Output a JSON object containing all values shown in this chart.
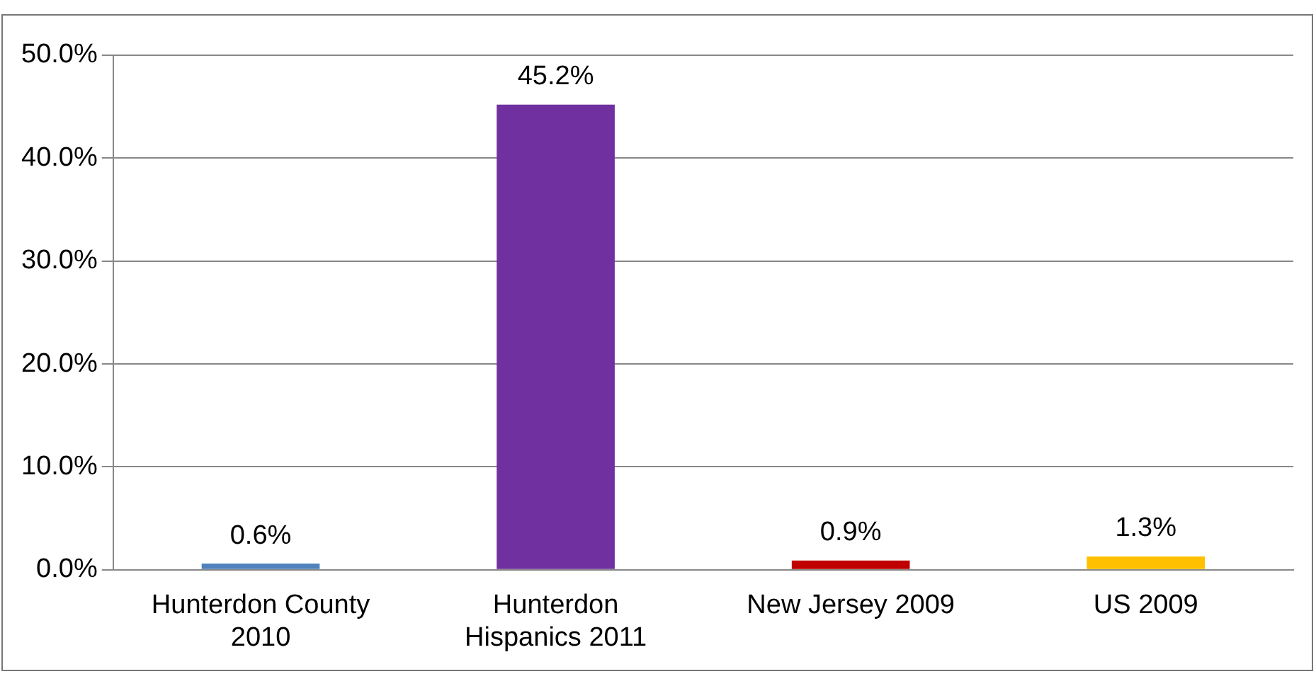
{
  "chart_data": {
    "type": "bar",
    "categories": [
      "Hunterdon County 2010",
      "Hunterdon Hispanics 2011",
      "New Jersey 2009",
      "US 2009"
    ],
    "values": [
      0.6,
      45.2,
      0.9,
      1.3
    ],
    "colors": [
      "#4f81bd",
      "#7030a0",
      "#c00000",
      "#ffc000"
    ],
    "value_labels": [
      "0.6%",
      "45.2%",
      "0.9%",
      "1.3%"
    ],
    "ylim": [
      0,
      50
    ],
    "yticks": [
      {
        "value": 0,
        "label": "0.0%"
      },
      {
        "value": 10,
        "label": "10.0%"
      },
      {
        "value": 20,
        "label": "20.0%"
      },
      {
        "value": 30,
        "label": "30.0%"
      },
      {
        "value": 40,
        "label": "40.0%"
      },
      {
        "value": 50,
        "label": "50.0%"
      }
    ],
    "grid": "y"
  }
}
